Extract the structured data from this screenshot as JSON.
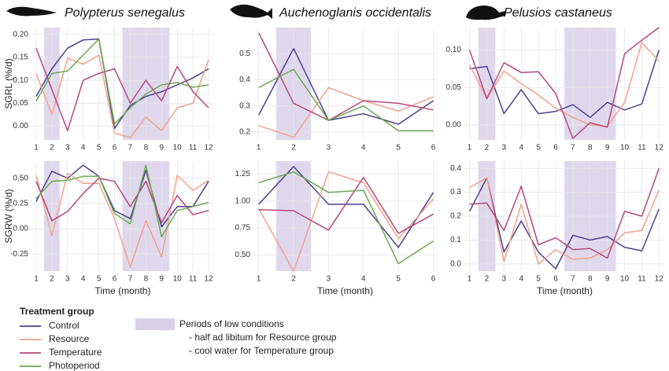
{
  "legend": {
    "title": "Treatment group",
    "items": [
      {
        "name": "Control",
        "color": "#4b3f8f"
      },
      {
        "name": "Resource",
        "color": "#f4a08a"
      },
      {
        "name": "Temperature",
        "color": "#b5487a"
      },
      {
        "name": "Photoperiod",
        "color": "#6aa84f"
      }
    ],
    "shade": {
      "label": "Periods of low conditions",
      "color": "#d9d1ea",
      "notes": [
        "- half ad libitum for Resource group",
        "- cool water for Temperature group"
      ]
    }
  },
  "chart_data": [
    {
      "type": "line",
      "title": "Polypterus senegalus",
      "ylabel": "SGRL (%/d)",
      "x": [
        1,
        2,
        3,
        4,
        5,
        6,
        7,
        8,
        9,
        10,
        11,
        12
      ],
      "xlim": [
        0.7,
        12.35
      ],
      "xticks": [
        1,
        2,
        3,
        4,
        5,
        6,
        7,
        8,
        9,
        10,
        11,
        12
      ],
      "ylim": [
        -0.03,
        0.215
      ],
      "yticks": [
        {
          "value": 0,
          "label": "0.00"
        },
        0.05,
        {
          "value": 0.1,
          "label": "0.10"
        },
        0.15,
        {
          "value": 0.2,
          "label": "0.20"
        }
      ],
      "shaded": [
        [
          1.5,
          2.5
        ],
        [
          6.5,
          9.5
        ]
      ],
      "grid": true,
      "series": [
        {
          "values": [
            0.065,
            0.125,
            0.17,
            0.188,
            0.19,
            -0.005,
            0.045,
            0.065,
            0.075,
            0.09,
            0.105,
            0.125
          ]
        },
        {
          "values": [
            0.115,
            0.025,
            0.148,
            0.135,
            0.155,
            -0.015,
            -0.025,
            0.02,
            -0.01,
            0.04,
            0.05,
            0.145
          ]
        },
        {
          "values": [
            0.17,
            0.08,
            -0.01,
            0.1,
            0.115,
            0.125,
            0.05,
            0.1,
            0.055,
            0.13,
            0.075,
            0.04
          ]
        },
        {
          "values": [
            0.055,
            0.115,
            0.12,
            0.155,
            0.19,
            0.005,
            0.04,
            0.07,
            0.09,
            0.095,
            0.085,
            0.09
          ]
        }
      ]
    },
    {
      "type": "line",
      "title": "Auchenoglanis occidentalis",
      "x": [
        1,
        2,
        3,
        4,
        5,
        6
      ],
      "xlim": [
        0.85,
        6.1
      ],
      "xticks": [
        1,
        2,
        3,
        4,
        5,
        6
      ],
      "ylim": [
        0.17,
        0.6
      ],
      "yticks": [
        0.2,
        0.3,
        0.4,
        0.5
      ],
      "shaded": [
        [
          1.5,
          2.5
        ]
      ],
      "grid": true,
      "series": [
        {
          "values": [
            0.265,
            0.52,
            0.245,
            0.27,
            0.23,
            0.32
          ]
        },
        {
          "values": [
            0.225,
            0.18,
            0.37,
            0.32,
            0.28,
            0.335
          ]
        },
        {
          "values": [
            0.58,
            0.31,
            0.245,
            0.32,
            0.31,
            0.285
          ]
        },
        {
          "values": [
            0.37,
            0.44,
            0.245,
            0.3,
            0.205,
            0.205
          ]
        }
      ]
    },
    {
      "type": "line",
      "title": "Pelusios castaneus",
      "x": [
        1,
        2,
        3,
        4,
        5,
        6,
        7,
        8,
        9,
        10,
        11,
        12
      ],
      "xlim": [
        0.7,
        12.35
      ],
      "xticks": [
        1,
        2,
        3,
        4,
        5,
        6,
        7,
        8,
        9,
        10,
        11,
        12
      ],
      "ylim": [
        -0.02,
        0.13
      ],
      "yticks": [
        {
          "value": 0,
          "label": "0.00"
        },
        0.05,
        {
          "value": 0.1,
          "label": "0.10"
        }
      ],
      "shaded": [
        [
          1.5,
          2.5
        ],
        [
          6.5,
          9.5
        ]
      ],
      "grid": true,
      "series": [
        {
          "values": [
            0.075,
            0.078,
            0.015,
            0.047,
            0.015,
            0.018,
            0.027,
            0.01,
            0.03,
            0.02,
            0.028,
            0.1
          ]
        },
        {
          "values": [
            0.08,
            0.035,
            0.072,
            0.055,
            0.04,
            0.022,
            0.01,
            0.0,
            -0.002,
            0.03,
            0.11,
            0.085
          ]
        },
        {
          "values": [
            0.1,
            0.035,
            0.083,
            0.07,
            0.071,
            0.042,
            -0.018,
            0.003,
            -0.003,
            0.095,
            0.113,
            0.13
          ]
        }
      ]
    },
    {
      "type": "line",
      "ylabel": "SGRW (%/d)",
      "xlabel": "Time (month)",
      "x": [
        1,
        2,
        3,
        4,
        5,
        6,
        7,
        8,
        9,
        10,
        11,
        12
      ],
      "xlim": [
        0.7,
        12.35
      ],
      "xticks": [
        1,
        2,
        3,
        4,
        5,
        6,
        7,
        8,
        9,
        10,
        11,
        12
      ],
      "ylim": [
        -0.42,
        0.67
      ],
      "yticks": [
        -0.25,
        {
          "value": 0,
          "label": "0.00"
        },
        0.25,
        {
          "value": 0.5,
          "label": "0.50"
        }
      ],
      "shaded": [
        [
          1.5,
          2.5
        ],
        [
          6.5,
          9.5
        ]
      ],
      "grid": true,
      "series": [
        {
          "values": [
            0.27,
            0.57,
            0.5,
            0.63,
            0.52,
            0.18,
            0.1,
            0.58,
            0.02,
            0.22,
            0.22,
            0.47
          ]
        },
        {
          "values": [
            0.53,
            -0.07,
            0.55,
            0.45,
            0.45,
            0.1,
            -0.38,
            0.08,
            -0.28,
            0.53,
            0.38,
            0.48
          ]
        },
        {
          "values": [
            0.47,
            0.08,
            0.17,
            0.35,
            0.5,
            0.47,
            0.22,
            0.47,
            0.06,
            0.33,
            0.14,
            0.18
          ]
        },
        {
          "values": [
            0.3,
            0.47,
            0.48,
            0.52,
            0.52,
            0.15,
            0.05,
            0.63,
            -0.08,
            0.18,
            0.22,
            0.26
          ]
        }
      ]
    },
    {
      "type": "line",
      "xlabel": "Time (month)",
      "x": [
        1,
        2,
        3,
        4,
        5,
        6
      ],
      "xlim": [
        0.85,
        6.1
      ],
      "xticks": [
        1,
        2,
        3,
        4,
        5,
        6
      ],
      "ylim": [
        0.35,
        1.37
      ],
      "yticks": [
        {
          "value": 0.5,
          "label": "0.50"
        },
        0.75,
        {
          "value": 1,
          "label": "1.00"
        },
        1.25
      ],
      "shaded": [
        [
          1.5,
          2.5
        ]
      ],
      "grid": true,
      "series": [
        {
          "values": [
            0.97,
            1.32,
            0.97,
            0.97,
            0.57,
            1.08
          ]
        },
        {
          "values": [
            0.93,
            0.35,
            1.27,
            1.17,
            0.65,
            1.02
          ]
        },
        {
          "values": [
            0.92,
            0.91,
            0.73,
            1.22,
            0.7,
            0.88
          ]
        },
        {
          "values": [
            1.17,
            1.27,
            1.08,
            1.1,
            0.42,
            0.63
          ]
        }
      ]
    },
    {
      "type": "line",
      "xlabel": "Time (month)",
      "x": [
        1,
        2,
        3,
        4,
        5,
        6,
        7,
        8,
        9,
        10,
        11,
        12
      ],
      "xlim": [
        0.7,
        12.35
      ],
      "xticks": [
        1,
        2,
        3,
        4,
        5,
        6,
        7,
        8,
        9,
        10,
        11,
        12
      ],
      "ylim": [
        -0.03,
        0.43
      ],
      "yticks": [
        {
          "value": 0,
          "label": "0.0"
        },
        0.1,
        0.2,
        0.3,
        0.4
      ],
      "shaded": [
        [
          1.5,
          2.5
        ],
        [
          6.5,
          9.5
        ]
      ],
      "grid": true,
      "series": [
        {
          "values": [
            0.22,
            0.36,
            0.05,
            0.18,
            0.05,
            -0.02,
            0.12,
            0.1,
            0.115,
            0.07,
            0.055,
            0.23
          ]
        },
        {
          "values": [
            0.32,
            0.36,
            0.01,
            0.25,
            0.0,
            0.06,
            0.02,
            0.025,
            0.06,
            0.13,
            0.14,
            0.31
          ]
        },
        {
          "values": [
            0.25,
            0.255,
            0.14,
            0.325,
            0.08,
            0.11,
            0.06,
            0.065,
            0.025,
            0.22,
            0.2,
            0.4
          ]
        }
      ]
    }
  ]
}
